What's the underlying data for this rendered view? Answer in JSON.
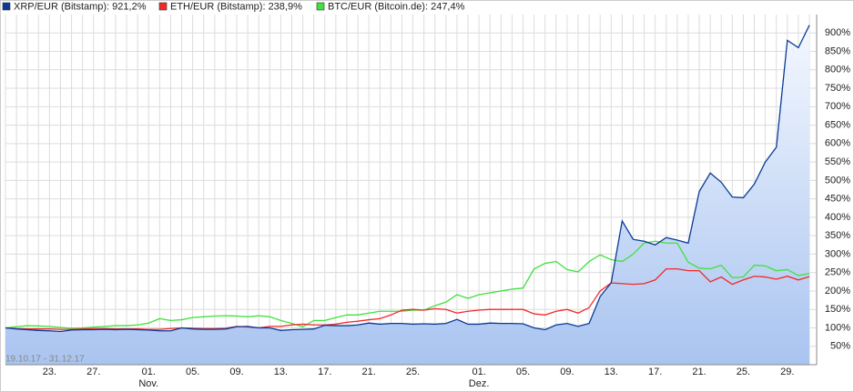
{
  "chart_data": {
    "type": "line",
    "annotation": "19.10.17 - 31.12.17",
    "categories": [
      null,
      null,
      null,
      null,
      "23.",
      null,
      null,
      null,
      "27.",
      null,
      null,
      null,
      null,
      "01.",
      null,
      null,
      null,
      "05.",
      null,
      null,
      null,
      "09.",
      null,
      null,
      null,
      "13.",
      null,
      null,
      null,
      "17.",
      null,
      null,
      null,
      "21.",
      null,
      null,
      null,
      "25.",
      null,
      null,
      null,
      null,
      null,
      "01.",
      null,
      null,
      null,
      "05.",
      null,
      null,
      null,
      "09.",
      null,
      null,
      null,
      "13.",
      null,
      null,
      null,
      "17.",
      null,
      null,
      null,
      "21.",
      null,
      null,
      null,
      "25.",
      null,
      null,
      null,
      "29.",
      null,
      null
    ],
    "month_labels": [
      null,
      null,
      null,
      null,
      null,
      null,
      null,
      null,
      null,
      null,
      null,
      null,
      null,
      "Nov.",
      null,
      null,
      null,
      null,
      null,
      null,
      null,
      null,
      null,
      null,
      null,
      null,
      null,
      null,
      null,
      null,
      null,
      null,
      null,
      null,
      null,
      null,
      null,
      null,
      null,
      null,
      null,
      null,
      null,
      "Dez.",
      null,
      null,
      null,
      null,
      null,
      null,
      null,
      null,
      null,
      null,
      null,
      null,
      null,
      null,
      null,
      null,
      null,
      null,
      null,
      null,
      null,
      null,
      null,
      null,
      null,
      null,
      null,
      null,
      null,
      null
    ],
    "series": [
      {
        "name": "XRP/EUR (Bitstamp): 921,2%",
        "color": "#0a3a96",
        "area": true,
        "values": [
          100,
          97,
          95,
          93,
          92,
          90,
          94,
          95,
          95,
          96,
          95,
          96,
          95,
          94,
          92,
          92,
          100,
          97,
          96,
          96,
          97,
          103,
          104,
          100,
          100,
          93,
          95,
          96,
          97,
          107,
          106,
          106,
          108,
          113,
          110,
          112,
          112,
          110,
          111,
          110,
          112,
          123,
          110,
          110,
          113,
          112,
          112,
          111,
          100,
          95,
          108,
          112,
          104,
          112,
          185,
          222,
          390,
          340,
          335,
          325,
          345,
          338,
          330,
          470,
          520,
          495,
          455,
          453,
          490,
          550,
          590,
          880,
          860,
          921.2
        ]
      },
      {
        "name": "ETH/EUR (Bitstamp): 238,9%",
        "color": "#f02a2a",
        "values": [
          100,
          98,
          97,
          97,
          97,
          96,
          96,
          97,
          98,
          98,
          97,
          97,
          97,
          96,
          96,
          98,
          100,
          99,
          98,
          98,
          99,
          104,
          102,
          100,
          104,
          104,
          108,
          110,
          108,
          108,
          110,
          115,
          118,
          122,
          125,
          135,
          148,
          150,
          148,
          152,
          150,
          140,
          145,
          148,
          150,
          150,
          150,
          150,
          138,
          135,
          145,
          150,
          140,
          155,
          200,
          222,
          220,
          218,
          220,
          230,
          260,
          260,
          255,
          255,
          225,
          238,
          218,
          230,
          240,
          238,
          232,
          240,
          230,
          238.9
        ]
      },
      {
        "name": "BTC/EUR (Bitcoin.de): 247,4%",
        "color": "#3ee23e",
        "values": [
          100,
          103,
          106,
          105,
          104,
          101,
          99,
          100,
          102,
          104,
          106,
          106,
          108,
          113,
          125,
          120,
          122,
          128,
          130,
          132,
          133,
          132,
          130,
          133,
          130,
          120,
          112,
          103,
          120,
          120,
          128,
          135,
          135,
          140,
          145,
          145,
          145,
          148,
          148,
          160,
          170,
          190,
          180,
          190,
          195,
          200,
          205,
          208,
          260,
          275,
          280,
          258,
          252,
          280,
          298,
          285,
          280,
          300,
          330,
          335,
          330,
          330,
          278,
          262,
          260,
          270,
          236,
          238,
          270,
          268,
          255,
          258,
          242,
          247.4
        ]
      }
    ],
    "ylim": [
      0,
      950
    ],
    "yticks": [
      {
        "value": 50,
        "label": "50%"
      },
      {
        "value": 100,
        "label": "100%"
      },
      {
        "value": 150,
        "label": "150%"
      },
      {
        "value": 200,
        "label": "200%"
      },
      {
        "value": 250,
        "label": "250%"
      },
      {
        "value": 300,
        "label": "300%"
      },
      {
        "value": 350,
        "label": "350%"
      },
      {
        "value": 400,
        "label": "400%"
      },
      {
        "value": 450,
        "label": "450%"
      },
      {
        "value": 500,
        "label": "500%"
      },
      {
        "value": 550,
        "label": "550%"
      },
      {
        "value": 600,
        "label": "600%"
      },
      {
        "value": 650,
        "label": "650%"
      },
      {
        "value": 700,
        "label": "700%"
      },
      {
        "value": 750,
        "label": "750%"
      },
      {
        "value": 800,
        "label": "800%"
      },
      {
        "value": 850,
        "label": "850%"
      },
      {
        "value": 900,
        "label": "900%"
      }
    ],
    "grid": true
  }
}
